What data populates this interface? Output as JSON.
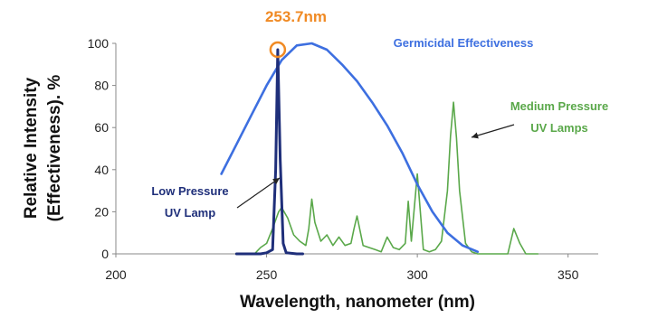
{
  "chart_data": {
    "type": "line",
    "xlabel": "Wavelength, nanometer (nm)",
    "ylabel": "Relative Intensity (Effectiveness). %",
    "ylabel_lines": [
      "Relative Intensity",
      "(Effectiveness). %"
    ],
    "xlim": [
      200,
      360
    ],
    "ylim": [
      0,
      100
    ],
    "x_ticks": [
      200,
      250,
      300,
      350
    ],
    "y_ticks": [
      0,
      20,
      40,
      60,
      80,
      100
    ],
    "grid": false,
    "series": [
      {
        "name": "Germicidal Effectiveness",
        "color": "#3d6fe0",
        "x": [
          235,
          240,
          245,
          250,
          255,
          260,
          265,
          270,
          275,
          280,
          285,
          290,
          295,
          300,
          305,
          310,
          315,
          320
        ],
        "y": [
          38,
          52,
          66,
          80,
          92,
          99,
          100,
          97,
          90,
          82,
          72,
          61,
          48,
          33,
          20,
          10,
          4,
          1
        ]
      },
      {
        "name": "Low Pressure UV Lamp",
        "color": "#1f2f7a",
        "x": [
          240,
          248,
          250,
          252,
          253,
          253.7,
          254.5,
          255.5,
          256.5,
          260,
          262
        ],
        "y": [
          0,
          0,
          0.5,
          2,
          40,
          97,
          45,
          5,
          0.5,
          0,
          0
        ]
      },
      {
        "name": "Medium Pressure UV Lamps",
        "color": "#5aa84a",
        "x": [
          246,
          248,
          250,
          252,
          254,
          255,
          257,
          259,
          261,
          263,
          264,
          265,
          266,
          268,
          270,
          272,
          274,
          276,
          278,
          279,
          280,
          282,
          284,
          286,
          288,
          290,
          292,
          294,
          296,
          297,
          298,
          300,
          302,
          304,
          306,
          308,
          310,
          311,
          312,
          313,
          314,
          316,
          318,
          320,
          325,
          330,
          332,
          334,
          336,
          340
        ],
        "y": [
          0,
          3,
          5,
          12,
          20,
          22,
          17,
          9,
          6,
          4,
          12,
          26,
          15,
          6,
          9,
          4,
          8,
          4,
          5,
          12,
          18,
          4,
          3,
          2,
          1,
          8,
          3,
          2,
          5,
          25,
          6,
          38,
          2,
          1,
          2,
          6,
          30,
          56,
          72,
          55,
          30,
          5,
          1,
          0,
          0,
          0,
          12,
          5,
          0,
          0
        ]
      }
    ],
    "annotations": {
      "peak_label": "253.7nm",
      "peak_x": 253.7,
      "peak_y": 97,
      "peak_color": "#f08a24",
      "germicidal_label": "Germicidal Effectiveness",
      "medium_lines": [
        "Medium Pressure",
        "UV Lamps"
      ],
      "low_lines": [
        "Low Pressure",
        "UV Lamp"
      ]
    }
  }
}
